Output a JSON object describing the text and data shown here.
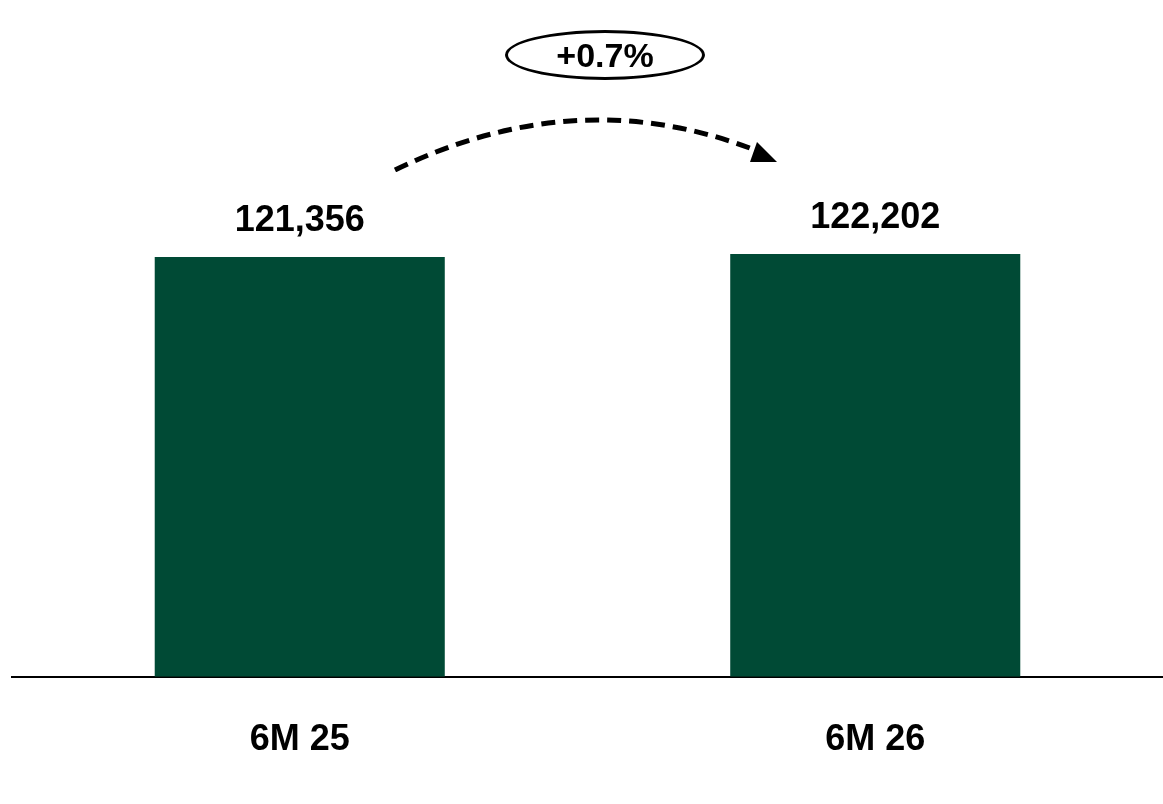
{
  "chart_data": {
    "type": "bar",
    "categories": [
      "6M 25",
      "6M 26"
    ],
    "series": [
      {
        "color": "#004a35",
        "values": [
          121356,
          122202
        ],
        "value_labels": [
          "121,356",
          "122,202"
        ]
      }
    ],
    "legend": false,
    "grid": false,
    "annotations": [
      "+0.7%"
    ]
  }
}
